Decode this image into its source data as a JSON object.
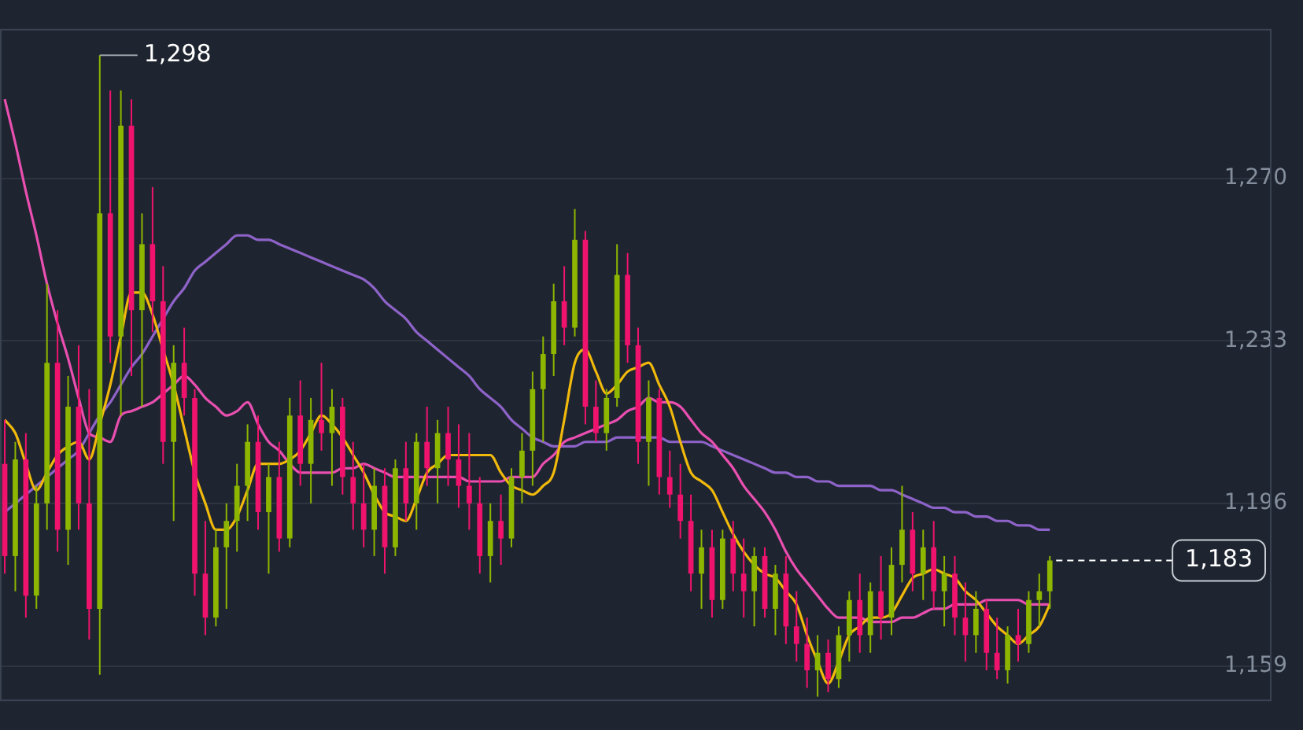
{
  "chart_data": {
    "type": "candlestick",
    "categories": [
      null,
      null,
      null,
      null,
      null,
      null,
      null,
      null,
      null,
      null,
      null,
      null,
      null,
      null,
      null,
      null,
      null,
      null,
      null,
      null,
      null,
      null,
      null,
      null,
      null,
      null,
      null,
      null,
      null,
      null,
      null,
      null,
      null,
      null,
      null,
      null,
      null,
      null,
      null,
      null,
      null,
      null,
      null,
      null,
      null,
      null,
      null,
      null,
      null,
      null,
      null,
      null,
      null,
      null,
      null,
      null,
      null,
      null,
      null,
      null,
      null,
      null,
      null,
      null,
      null,
      null,
      null,
      null,
      null,
      null,
      null,
      null,
      null,
      null,
      null,
      null,
      null,
      null,
      null,
      null,
      null,
      null,
      null,
      null,
      null,
      null,
      null,
      null,
      null,
      null,
      null,
      null,
      null,
      null,
      null,
      null,
      null,
      null,
      null,
      null
    ],
    "ohlc": [
      [
        1205,
        1215,
        1180,
        1184
      ],
      [
        1184,
        1210,
        1176,
        1206
      ],
      [
        1206,
        1212,
        1170,
        1175
      ],
      [
        1175,
        1200,
        1172,
        1196
      ],
      [
        1196,
        1246,
        1190,
        1228
      ],
      [
        1228,
        1240,
        1185,
        1190
      ],
      [
        1190,
        1225,
        1182,
        1218
      ],
      [
        1218,
        1232,
        1190,
        1196
      ],
      [
        1196,
        1222,
        1165,
        1172
      ],
      [
        1172,
        1298,
        1157,
        1262
      ],
      [
        1262,
        1290,
        1228,
        1234
      ],
      [
        1234,
        1290,
        1216,
        1282
      ],
      [
        1282,
        1288,
        1225,
        1240
      ],
      [
        1240,
        1262,
        1218,
        1255
      ],
      [
        1255,
        1268,
        1235,
        1242
      ],
      [
        1242,
        1250,
        1205,
        1210
      ],
      [
        1210,
        1232,
        1192,
        1228
      ],
      [
        1228,
        1236,
        1216,
        1220
      ],
      [
        1220,
        1222,
        1175,
        1180
      ],
      [
        1180,
        1192,
        1166,
        1170
      ],
      [
        1170,
        1190,
        1168,
        1186
      ],
      [
        1186,
        1196,
        1172,
        1192
      ],
      [
        1192,
        1205,
        1185,
        1200
      ],
      [
        1200,
        1214,
        1192,
        1210
      ],
      [
        1210,
        1216,
        1190,
        1194
      ],
      [
        1194,
        1205,
        1180,
        1202
      ],
      [
        1202,
        1210,
        1185,
        1188
      ],
      [
        1188,
        1220,
        1186,
        1216
      ],
      [
        1216,
        1224,
        1200,
        1205
      ],
      [
        1205,
        1220,
        1196,
        1215
      ],
      [
        1215,
        1228,
        1208,
        1212
      ],
      [
        1212,
        1222,
        1200,
        1218
      ],
      [
        1218,
        1220,
        1198,
        1202
      ],
      [
        1202,
        1210,
        1190,
        1196
      ],
      [
        1196,
        1205,
        1186,
        1190
      ],
      [
        1190,
        1204,
        1184,
        1200
      ],
      [
        1200,
        1204,
        1180,
        1186
      ],
      [
        1186,
        1206,
        1184,
        1204
      ],
      [
        1204,
        1210,
        1192,
        1196
      ],
      [
        1196,
        1212,
        1190,
        1210
      ],
      [
        1210,
        1218,
        1200,
        1204
      ],
      [
        1204,
        1215,
        1196,
        1212
      ],
      [
        1212,
        1218,
        1200,
        1206
      ],
      [
        1206,
        1214,
        1195,
        1200
      ],
      [
        1200,
        1212,
        1190,
        1196
      ],
      [
        1196,
        1202,
        1180,
        1184
      ],
      [
        1184,
        1196,
        1178,
        1192
      ],
      [
        1192,
        1198,
        1182,
        1188
      ],
      [
        1188,
        1204,
        1186,
        1202
      ],
      [
        1202,
        1212,
        1196,
        1208
      ],
      [
        1208,
        1226,
        1200,
        1222
      ],
      [
        1222,
        1234,
        1210,
        1230
      ],
      [
        1230,
        1246,
        1225,
        1242
      ],
      [
        1242,
        1250,
        1232,
        1236
      ],
      [
        1236,
        1263,
        1234,
        1256
      ],
      [
        1256,
        1258,
        1214,
        1218
      ],
      [
        1218,
        1224,
        1210,
        1212
      ],
      [
        1212,
        1222,
        1208,
        1220
      ],
      [
        1220,
        1255,
        1218,
        1248
      ],
      [
        1248,
        1253,
        1228,
        1232
      ],
      [
        1232,
        1236,
        1205,
        1210
      ],
      [
        1210,
        1224,
        1200,
        1220
      ],
      [
        1220,
        1222,
        1198,
        1202
      ],
      [
        1202,
        1208,
        1195,
        1198
      ],
      [
        1198,
        1205,
        1188,
        1192
      ],
      [
        1192,
        1198,
        1176,
        1180
      ],
      [
        1180,
        1190,
        1172,
        1186
      ],
      [
        1186,
        1190,
        1170,
        1174
      ],
      [
        1174,
        1190,
        1172,
        1188
      ],
      [
        1188,
        1192,
        1176,
        1180
      ],
      [
        1180,
        1188,
        1170,
        1176
      ],
      [
        1176,
        1186,
        1168,
        1184
      ],
      [
        1184,
        1186,
        1170,
        1172
      ],
      [
        1172,
        1182,
        1166,
        1180
      ],
      [
        1180,
        1184,
        1164,
        1168
      ],
      [
        1168,
        1176,
        1160,
        1164
      ],
      [
        1164,
        1170,
        1154,
        1158
      ],
      [
        1158,
        1166,
        1152,
        1162
      ],
      [
        1162,
        1165,
        1153,
        1156
      ],
      [
        1156,
        1168,
        1154,
        1166
      ],
      [
        1166,
        1176,
        1160,
        1174
      ],
      [
        1174,
        1180,
        1162,
        1166
      ],
      [
        1166,
        1178,
        1162,
        1176
      ],
      [
        1176,
        1184,
        1165,
        1170
      ],
      [
        1170,
        1186,
        1166,
        1182
      ],
      [
        1182,
        1200,
        1178,
        1190
      ],
      [
        1190,
        1194,
        1176,
        1180
      ],
      [
        1180,
        1190,
        1174,
        1186
      ],
      [
        1186,
        1192,
        1172,
        1176
      ],
      [
        1176,
        1184,
        1168,
        1180
      ],
      [
        1180,
        1184,
        1166,
        1170
      ],
      [
        1170,
        1178,
        1160,
        1166
      ],
      [
        1166,
        1176,
        1162,
        1172
      ],
      [
        1172,
        1174,
        1158,
        1162
      ],
      [
        1162,
        1170,
        1156,
        1158
      ],
      [
        1158,
        1168,
        1155,
        1166
      ],
      [
        1166,
        1172,
        1160,
        1164
      ],
      [
        1164,
        1176,
        1162,
        1174
      ],
      [
        1174,
        1180,
        1168,
        1176
      ],
      [
        1176,
        1184,
        1172,
        1183
      ]
    ],
    "series": [
      {
        "type": "line",
        "color": "#f0b90b",
        "values": [
          1215,
          1212,
          1205,
          1199,
          1203,
          1207,
          1209,
          1210,
          1206,
          1214,
          1223,
          1234,
          1244,
          1244,
          1239,
          1231,
          1223,
          1213,
          1203,
          1196,
          1190,
          1190,
          1193,
          1199,
          1205,
          1205,
          1205,
          1206,
          1208,
          1212,
          1216,
          1214,
          1211,
          1207,
          1203,
          1198,
          1194,
          1193,
          1192,
          1197,
          1203,
          1205,
          1207,
          1207,
          1207,
          1207,
          1207,
          1203,
          1200,
          1199,
          1198,
          1200,
          1203,
          1215,
          1228,
          1231,
          1226,
          1221,
          1223,
          1226,
          1227,
          1228,
          1223,
          1218,
          1210,
          1203,
          1201,
          1199,
          1194,
          1189,
          1185,
          1182,
          1180,
          1179,
          1176,
          1173,
          1166,
          1160,
          1155,
          1160,
          1166,
          1168,
          1170,
          1170,
          1171,
          1175,
          1179,
          1180,
          1181,
          1180,
          1179,
          1176,
          1174,
          1171,
          1168,
          1166,
          1164,
          1166,
          1168,
          1173
        ]
      },
      {
        "type": "line",
        "color": "#e84fb0",
        "values": [
          1288,
          1278,
          1267,
          1257,
          1246,
          1237,
          1229,
          1220,
          1212,
          1211,
          1210,
          1216,
          1217,
          1218,
          1219,
          1221,
          1223,
          1225,
          1223,
          1220,
          1218,
          1216,
          1217,
          1219,
          1214,
          1210,
          1208,
          1205,
          1203,
          1203,
          1203,
          1203,
          1204,
          1204,
          1205,
          1204,
          1203,
          1202,
          1202,
          1202,
          1202,
          1202,
          1202,
          1202,
          1201,
          1201,
          1201,
          1201,
          1202,
          1202,
          1202,
          1205,
          1207,
          1210,
          1211,
          1212,
          1213,
          1214,
          1215,
          1217,
          1218,
          1220,
          1219,
          1219,
          1218,
          1215,
          1212,
          1210,
          1207,
          1204,
          1200,
          1197,
          1194,
          1190,
          1185,
          1181,
          1178,
          1175,
          1172,
          1170,
          1170,
          1170,
          1169,
          1169,
          1169,
          1170,
          1170,
          1171,
          1172,
          1172,
          1173,
          1173,
          1173,
          1174,
          1174,
          1174,
          1174,
          1173,
          1173,
          1173
        ]
      },
      {
        "type": "line",
        "color": "#8e63c9",
        "values": [
          1194,
          1196,
          1198,
          1200,
          1202,
          1204,
          1206,
          1208,
          1212,
          1216,
          1219,
          1223,
          1227,
          1230,
          1234,
          1238,
          1242,
          1245,
          1249,
          1251,
          1253,
          1255,
          1257,
          1257,
          1256,
          1256,
          1255,
          1254,
          1253,
          1252,
          1251,
          1250,
          1249,
          1248,
          1247,
          1245,
          1242,
          1240,
          1238,
          1235,
          1233,
          1231,
          1229,
          1227,
          1225,
          1222,
          1220,
          1218,
          1215,
          1213,
          1211,
          1210,
          1209,
          1209,
          1209,
          1210,
          1210,
          1210,
          1211,
          1211,
          1211,
          1211,
          1211,
          1210,
          1210,
          1210,
          1210,
          1209,
          1208,
          1207,
          1206,
          1205,
          1204,
          1203,
          1203,
          1202,
          1202,
          1201,
          1201,
          1200,
          1200,
          1200,
          1200,
          1199,
          1199,
          1198,
          1197,
          1196,
          1195,
          1195,
          1194,
          1194,
          1193,
          1193,
          1192,
          1192,
          1191,
          1191,
          1190,
          1190
        ]
      }
    ],
    "ylim": [
      1151,
      1304
    ],
    "yticks": [
      {
        "value": 1159,
        "label": "1,159"
      },
      {
        "value": 1196,
        "label": "1,196"
      },
      {
        "value": 1233,
        "label": "1,233"
      },
      {
        "value": 1270,
        "label": "1,270"
      }
    ],
    "grid": "y",
    "ref_lines": [
      {
        "axis": "y",
        "value": 1183,
        "label": "1,183",
        "line_style": "dashed",
        "color": "#ffffff"
      }
    ],
    "annotations": [
      "1,298"
    ]
  }
}
